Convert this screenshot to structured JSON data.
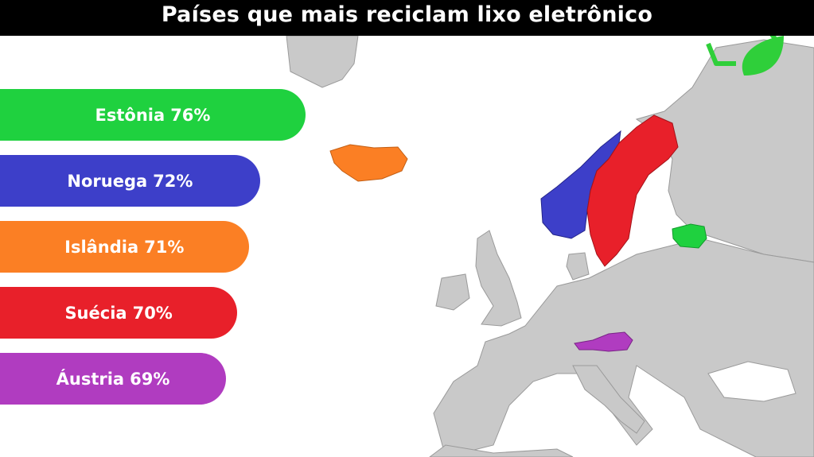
{
  "chart_data": {
    "type": "bar",
    "orientation": "horizontal",
    "title": "Países que mais reciclam lixo eletrônico",
    "categories": [
      "Estônia",
      "Noruega",
      "Islândia",
      "Suécia",
      "Áustria"
    ],
    "values": [
      76,
      72,
      71,
      70,
      69
    ],
    "value_labels": [
      "76%",
      "72%",
      "71%",
      "70%",
      "69%"
    ],
    "colors": [
      "#1fd13f",
      "#3d3fc9",
      "#fb7f24",
      "#e8202a",
      "#b03cc0"
    ]
  }
}
